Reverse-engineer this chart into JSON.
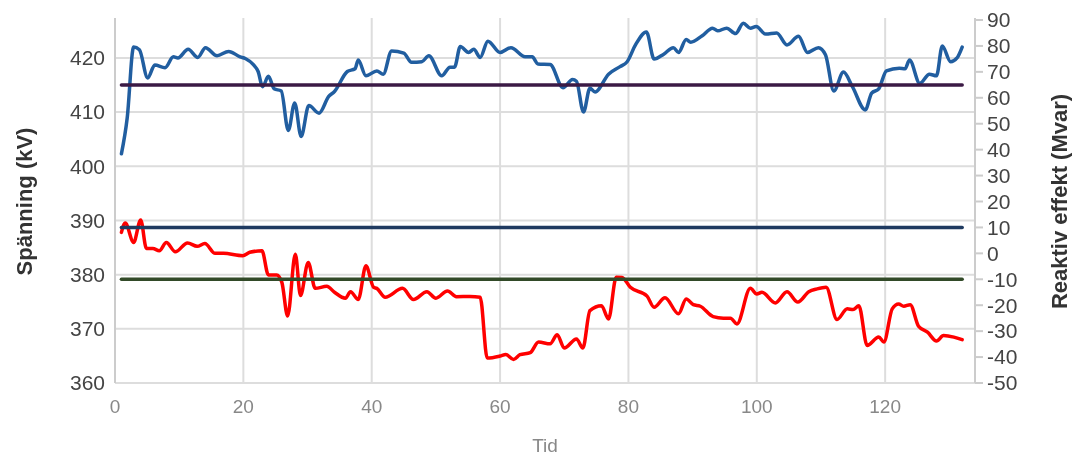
{
  "chart_data": {
    "type": "line",
    "xlabel": "Tid",
    "ylabel": "Spänning (kV)",
    "y2label": "Reaktiv effekt (Mvar)",
    "xlim": [
      0,
      134
    ],
    "xticks": [
      0,
      20,
      40,
      60,
      80,
      100,
      120
    ],
    "ylim": [
      360,
      427
    ],
    "yticks": [
      360,
      370,
      380,
      390,
      400,
      410,
      420
    ],
    "y2lim": [
      -50,
      90
    ],
    "y2ticks": [
      -50,
      -40,
      -30,
      -20,
      -10,
      0,
      10,
      20,
      30,
      40,
      50,
      60,
      70,
      80,
      90
    ],
    "grid": true,
    "line_style": "solid",
    "series": [
      {
        "color": "#215ea0",
        "axis": "y",
        "x": [
          1,
          1.9,
          2.9,
          3.8,
          5.1,
          6.2,
          7.8,
          9.1,
          9.8,
          11.4,
          12.9,
          14.1,
          15.9,
          17.7,
          19.5,
          20.3,
          21.6,
          22.3,
          23.0,
          23.9,
          24.8,
          25.9,
          27.0,
          28.0,
          29.0,
          30.2,
          31.8,
          33.3,
          34.2,
          36.2,
          37.4,
          37.9,
          39.1,
          40.8,
          41.8,
          43.1,
          45.0,
          46.2,
          47.8,
          48.9,
          50.9,
          52.2,
          52.9,
          53.8,
          55.1,
          55.9,
          56.9,
          58.1,
          60.0,
          61.7,
          63.9,
          65.0,
          65.9,
          67.8,
          69.8,
          71.3,
          71.9,
          73.0,
          74.0,
          74.8,
          76.9,
          78.7,
          79.8,
          81.1,
          82.8,
          84.0,
          85.5,
          87.0,
          87.8,
          89.0,
          89.7,
          91.5,
          93.1,
          93.9,
          95.3,
          96.7,
          97.9,
          99.0,
          99.9,
          101.4,
          103.1,
          104.7,
          106.5,
          107.9,
          109.6,
          110.7,
          112.0,
          113.5,
          114.9,
          116.9,
          117.9,
          119.0,
          120.2,
          122.2,
          123.1,
          123.8,
          125.4,
          126.9,
          128.0,
          128.9,
          130.2,
          131.2,
          132
        ],
        "values": [
          402.3,
          408.9,
          422.0,
          421.5,
          416.3,
          418.7,
          418.2,
          420.2,
          420.0,
          421.6,
          420.1,
          421.9,
          420.4,
          421.2,
          420.2,
          419.9,
          418.7,
          417.5,
          414.7,
          416.6,
          414.3,
          413.9,
          406.6,
          411.7,
          405.5,
          411.2,
          409.8,
          412.9,
          413.8,
          417.5,
          418.0,
          419.6,
          416.7,
          417.6,
          417.0,
          421.3,
          420.9,
          419.2,
          419.3,
          420.4,
          416.7,
          418.3,
          418.3,
          422.1,
          421.0,
          421.6,
          420.1,
          423.1,
          421.0,
          421.9,
          420.2,
          420.2,
          418.9,
          418.8,
          414.5,
          416.0,
          415.7,
          410.0,
          414.4,
          413.7,
          417.0,
          418.4,
          419.3,
          422.4,
          424.8,
          419.8,
          420.7,
          421.9,
          421.0,
          423.4,
          422.9,
          424.1,
          425.5,
          425.0,
          425.5,
          424.5,
          426.4,
          425.5,
          425.8,
          424.4,
          424.6,
          422.4,
          424.0,
          421.0,
          421.9,
          420.6,
          413.9,
          417.4,
          414.7,
          410.4,
          413.5,
          414.3,
          417.6,
          418.1,
          418.0,
          419.6,
          415.3,
          417.0,
          416.7,
          422.2,
          419.3,
          420.0,
          422.0
        ]
      },
      {
        "color": "#ff0000",
        "axis": "y2",
        "x": [
          1,
          1.6,
          2.9,
          4.0,
          4.9,
          5.9,
          6.9,
          8.0,
          9.4,
          11.3,
          12.8,
          14.0,
          15.6,
          16.9,
          19.9,
          21.0,
          22.9,
          23.9,
          25.2,
          26.0,
          26.9,
          28.1,
          28.9,
          30.1,
          31.2,
          33.0,
          34.2,
          35.9,
          36.7,
          37.9,
          39.1,
          40.3,
          40.8,
          42.1,
          44.8,
          46.5,
          48.6,
          50.0,
          51.8,
          53.2,
          55.3,
          56.9,
          58.0,
          60.0,
          60.9,
          62.1,
          63.1,
          64.7,
          66.0,
          67.8,
          68.9,
          70.0,
          71.9,
          72.9,
          74.0,
          75.8,
          76.9,
          78.1,
          79.0,
          80.3,
          82.9,
          84.0,
          85.7,
          87.8,
          89.0,
          90.1,
          91.2,
          93.2,
          94.8,
          95.9,
          96.9,
          99.0,
          100.0,
          100.8,
          102.9,
          104.7,
          106.4,
          108.1,
          109.4,
          110.8,
          112.5,
          114.1,
          115.0,
          115.9,
          117.2,
          119.0,
          119.8,
          121.1,
          122.1,
          122.9,
          123.9,
          125.2,
          126.6,
          128.0,
          129.1,
          130.7,
          132
        ],
        "values": [
          8.1,
          11.7,
          4.2,
          12.9,
          1.9,
          1.9,
          1.0,
          4.2,
          0.6,
          4.0,
          2.7,
          3.8,
          0.0,
          0.0,
          -0.9,
          0.4,
          1.0,
          -8.3,
          -8.3,
          -11.2,
          -24.2,
          -0.3,
          -16.3,
          -3.5,
          -13.5,
          -12.7,
          -15.0,
          -17.3,
          -14.8,
          -17.8,
          -4.8,
          -13.1,
          -13.5,
          -16.9,
          -13.5,
          -17.8,
          -14.8,
          -17.3,
          -14.5,
          -16.7,
          -16.6,
          -16.9,
          -40.4,
          -39.6,
          -39.0,
          -40.9,
          -39.1,
          -38.3,
          -34.2,
          -34.9,
          -31.4,
          -36.5,
          -33.0,
          -36.5,
          -22.1,
          -20.2,
          -25.3,
          -9.2,
          -9.3,
          -13.1,
          -16.5,
          -20.8,
          -17.1,
          -23.3,
          -17.6,
          -19.8,
          -20.4,
          -24.4,
          -25.0,
          -25.0,
          -27.2,
          -13.5,
          -15.7,
          -15.0,
          -19.1,
          -14.8,
          -18.8,
          -14.8,
          -13.7,
          -13.1,
          -25.5,
          -21.4,
          -21.7,
          -20.2,
          -35.5,
          -32.3,
          -34.2,
          -21.4,
          -19.5,
          -20.4,
          -19.8,
          -28.1,
          -30.4,
          -33.8,
          -31.7,
          -32.3,
          -33.3
        ]
      },
      {
        "color": "#3b1a45",
        "axis": "y",
        "x": [
          1,
          132
        ],
        "values": [
          415,
          415
        ]
      },
      {
        "color": "#1f3a60",
        "axis": "y2",
        "x": [
          1,
          132
        ],
        "values": [
          10,
          10
        ]
      },
      {
        "color": "#324a28",
        "axis": "y2",
        "x": [
          1,
          132
        ],
        "values": [
          -10,
          -10
        ]
      }
    ]
  }
}
